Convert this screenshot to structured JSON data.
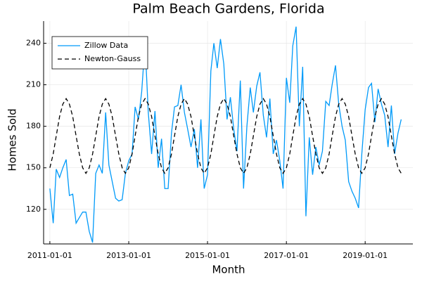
{
  "chart_data": {
    "type": "line",
    "title": "Palm Beach Gardens, Florida",
    "x_label": "Month",
    "y_label": "Homes Sold",
    "x": [
      "2011-01-01",
      "2011-02-01",
      "2011-03-01",
      "2011-04-01",
      "2011-05-01",
      "2011-06-01",
      "2011-07-01",
      "2011-08-01",
      "2011-09-01",
      "2011-10-01",
      "2011-11-01",
      "2011-12-01",
      "2012-01-01",
      "2012-02-01",
      "2012-03-01",
      "2012-04-01",
      "2012-05-01",
      "2012-06-01",
      "2012-07-01",
      "2012-08-01",
      "2012-09-01",
      "2012-10-01",
      "2012-11-01",
      "2012-12-01",
      "2013-01-01",
      "2013-02-01",
      "2013-03-01",
      "2013-04-01",
      "2013-05-01",
      "2013-06-01",
      "2013-07-01",
      "2013-08-01",
      "2013-09-01",
      "2013-10-01",
      "2013-11-01",
      "2013-12-01",
      "2014-01-01",
      "2014-02-01",
      "2014-03-01",
      "2014-04-01",
      "2014-05-01",
      "2014-06-01",
      "2014-07-01",
      "2014-08-01",
      "2014-09-01",
      "2014-10-01",
      "2014-11-01",
      "2014-12-01",
      "2015-01-01",
      "2015-02-01",
      "2015-03-01",
      "2015-04-01",
      "2015-05-01",
      "2015-06-01",
      "2015-07-01",
      "2015-08-01",
      "2015-09-01",
      "2015-10-01",
      "2015-11-01",
      "2015-12-01",
      "2016-01-01",
      "2016-02-01",
      "2016-03-01",
      "2016-04-01",
      "2016-05-01",
      "2016-06-01",
      "2016-07-01",
      "2016-08-01",
      "2016-09-01",
      "2016-10-01",
      "2016-11-01",
      "2016-12-01",
      "2017-01-01",
      "2017-02-01",
      "2017-03-01",
      "2017-04-01",
      "2017-05-01",
      "2017-06-01",
      "2017-07-01",
      "2017-08-01",
      "2017-09-01",
      "2017-10-01",
      "2017-11-01",
      "2017-12-01",
      "2018-01-01",
      "2018-02-01",
      "2018-03-01",
      "2018-04-01",
      "2018-05-01",
      "2018-06-01",
      "2018-07-01",
      "2018-08-01",
      "2018-09-01",
      "2018-10-01",
      "2018-11-01",
      "2018-12-01",
      "2019-01-01",
      "2019-02-01",
      "2019-03-01",
      "2019-04-01",
      "2019-05-01",
      "2019-06-01",
      "2019-07-01",
      "2019-08-01",
      "2019-09-01",
      "2019-10-01",
      "2019-11-01",
      "2019-12-01"
    ],
    "series": [
      {
        "name": "Zillow Data",
        "color": "#009af9",
        "dash": false,
        "values": [
          135,
          110,
          149,
          143,
          150,
          156,
          130,
          131,
          110,
          114,
          118,
          118,
          104,
          96,
          146,
          152,
          146,
          190,
          152,
          140,
          128,
          126,
          127,
          146,
          155,
          160,
          194,
          185,
          205,
          240,
          190,
          160,
          191,
          150,
          171,
          135,
          135,
          175,
          194,
          195,
          210,
          190,
          178,
          165,
          178,
          150,
          185,
          135,
          145,
          220,
          240,
          222,
          243,
          225,
          185,
          201,
          178,
          162,
          213,
          135,
          180,
          208,
          190,
          209,
          219,
          188,
          172,
          200,
          160,
          170,
          155,
          135,
          215,
          197,
          238,
          252,
          180,
          223,
          115,
          172,
          145,
          165,
          152,
          162,
          198,
          195,
          210,
          224,
          196,
          180,
          170,
          140,
          133,
          128,
          121,
          160,
          192,
          208,
          211,
          183,
          207,
          196,
          188,
          165,
          195,
          160,
          175,
          185
        ]
      },
      {
        "name": "Newton-Gauss",
        "color": "#000000",
        "dash": true,
        "values": [
          150,
          160,
          173,
          187,
          196,
          200,
          196,
          187,
          173,
          160,
          150,
          146,
          150,
          160,
          173,
          187,
          196,
          200,
          196,
          187,
          173,
          160,
          150,
          146,
          150,
          160,
          173,
          187,
          196,
          200,
          196,
          187,
          173,
          160,
          150,
          146,
          150,
          160,
          173,
          187,
          196,
          200,
          196,
          187,
          173,
          160,
          150,
          146,
          150,
          160,
          173,
          187,
          196,
          200,
          196,
          187,
          173,
          160,
          150,
          146,
          150,
          160,
          173,
          187,
          196,
          200,
          196,
          187,
          173,
          160,
          150,
          146,
          150,
          160,
          173,
          187,
          196,
          200,
          196,
          187,
          173,
          160,
          150,
          146,
          150,
          160,
          173,
          187,
          196,
          200,
          196,
          187,
          173,
          160,
          150,
          146,
          150,
          160,
          173,
          187,
          196,
          200,
          196,
          187,
          173,
          160,
          150,
          146
        ]
      }
    ],
    "xlim": [
      "2010-11-04",
      "2020-03-18"
    ],
    "xticks": [
      "2011-01-01",
      "2013-01-01",
      "2015-01-01",
      "2017-01-01",
      "2019-01-01"
    ],
    "ylim": [
      95,
      256
    ],
    "yticks": [
      120,
      150,
      180,
      210,
      240
    ],
    "grid": true,
    "legend": "top-left"
  }
}
